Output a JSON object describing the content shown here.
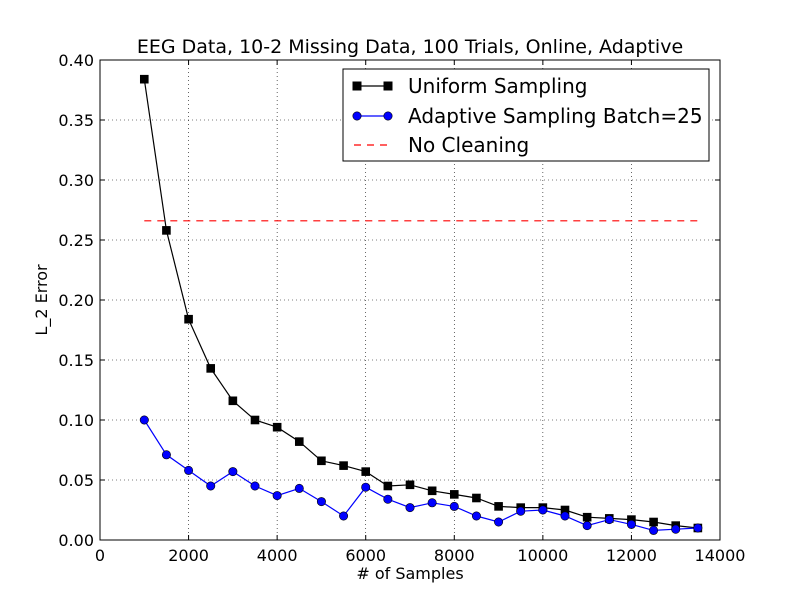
{
  "chart_data": {
    "type": "line",
    "title": "EEG Data, 10-2 Missing Data, 100 Trials, Online, Adaptive",
    "xlabel": "# of Samples",
    "ylabel": "L_2 Error",
    "xlim": [
      0,
      14000
    ],
    "ylim": [
      0,
      0.4
    ],
    "x_ticks": [
      0,
      2000,
      4000,
      6000,
      8000,
      10000,
      12000,
      14000
    ],
    "y_ticks": [
      0.0,
      0.05,
      0.1,
      0.15,
      0.2,
      0.25,
      0.3,
      0.35,
      0.4
    ],
    "x_tick_labels": [
      "0",
      "2000",
      "4000",
      "6000",
      "8000",
      "10000",
      "12000",
      "14000"
    ],
    "y_tick_labels": [
      "0.00",
      "0.05",
      "0.10",
      "0.15",
      "0.20",
      "0.25",
      "0.30",
      "0.35",
      "0.40"
    ],
    "grid": true,
    "legend_position": "top-right",
    "x": [
      1000,
      1500,
      2000,
      2500,
      3000,
      3500,
      4000,
      4500,
      5000,
      5500,
      6000,
      6500,
      7000,
      7500,
      8000,
      8500,
      9000,
      9500,
      10000,
      10500,
      11000,
      11500,
      12000,
      12500,
      13000,
      13500
    ],
    "series": [
      {
        "name": "Uniform Sampling",
        "color": "#000000",
        "marker": "square",
        "linestyle": "solid",
        "values": [
          0.384,
          0.258,
          0.184,
          0.143,
          0.116,
          0.1,
          0.094,
          0.082,
          0.066,
          0.062,
          0.057,
          0.045,
          0.046,
          0.041,
          0.038,
          0.035,
          0.028,
          0.027,
          0.027,
          0.025,
          0.019,
          0.018,
          0.017,
          0.015,
          0.012,
          0.01
        ]
      },
      {
        "name": "Adaptive Sampling Batch=25",
        "color": "#0000ff",
        "marker": "circle",
        "linestyle": "solid",
        "values": [
          0.1,
          0.071,
          0.058,
          0.045,
          0.057,
          0.045,
          0.037,
          0.043,
          0.032,
          0.02,
          0.044,
          0.034,
          0.027,
          0.031,
          0.028,
          0.02,
          0.015,
          0.024,
          0.025,
          0.02,
          0.012,
          0.017,
          0.013,
          0.008,
          0.009,
          0.01
        ]
      },
      {
        "name": "No Cleaning",
        "color": "#ff0000",
        "marker": "none",
        "linestyle": "dashed",
        "x": [
          1000,
          13500
        ],
        "values": [
          0.266,
          0.266
        ]
      }
    ]
  }
}
